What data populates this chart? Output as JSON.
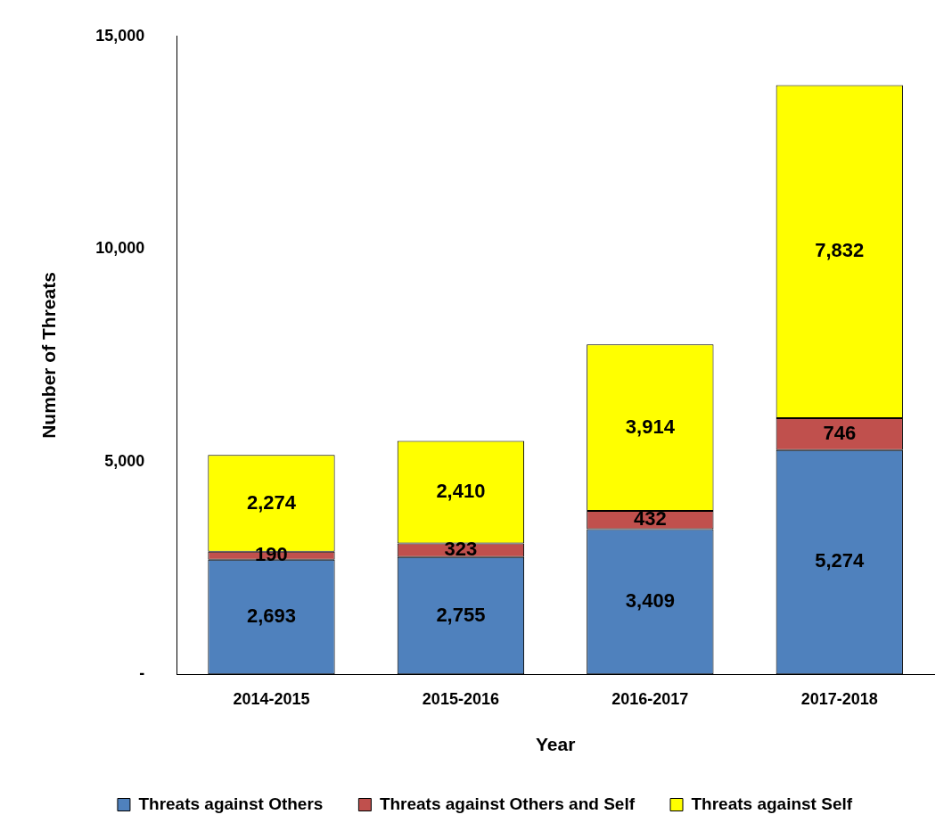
{
  "chart_data": {
    "type": "bar",
    "stacked": true,
    "xlabel": "Year",
    "ylabel": "Number of Threats",
    "categories": [
      "2014-2015",
      "2015-2016",
      "2016-2017",
      "2017-2018"
    ],
    "series": [
      {
        "name": "Threats against Others",
        "color": "#4f81bd",
        "values": [
          2693,
          2755,
          3409,
          5274
        ],
        "value_labels": [
          "2,693",
          "2,755",
          "3,409",
          "5,274"
        ]
      },
      {
        "name": "Threats against Others and Self",
        "color": "#c0504d",
        "values": [
          190,
          323,
          432,
          746
        ],
        "value_labels": [
          "190",
          "323",
          "432",
          "746"
        ]
      },
      {
        "name": "Threats against Self",
        "color": "#ffff00",
        "values": [
          2274,
          2410,
          3914,
          7832
        ],
        "value_labels": [
          "2,274",
          "2,410",
          "3,914",
          "7,832"
        ]
      }
    ],
    "ylim": [
      0,
      15000
    ],
    "yticks": [
      {
        "value": 0,
        "label": "-"
      },
      {
        "value": 5000,
        "label": "5,000"
      },
      {
        "value": 10000,
        "label": "10,000"
      },
      {
        "value": 15000,
        "label": "15,000"
      }
    ],
    "grid": false,
    "legend": "bottom"
  }
}
